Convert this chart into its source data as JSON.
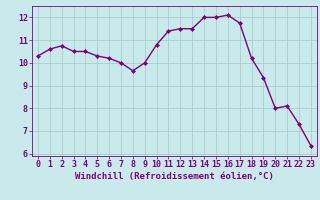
{
  "x": [
    0,
    1,
    2,
    3,
    4,
    5,
    6,
    7,
    8,
    9,
    10,
    11,
    12,
    13,
    14,
    15,
    16,
    17,
    18,
    19,
    20,
    21,
    22,
    23
  ],
  "y": [
    10.3,
    10.6,
    10.75,
    10.5,
    10.5,
    10.3,
    10.2,
    10.0,
    9.65,
    10.0,
    10.8,
    11.4,
    11.5,
    11.5,
    12.0,
    12.0,
    12.1,
    11.75,
    10.2,
    9.35,
    8.0,
    8.1,
    7.3,
    6.35
  ],
  "line_color": "#800080",
  "marker": "D",
  "marker_size": 2.0,
  "line_width": 1.0,
  "bg_color": "#c8eaea",
  "grid_color": "#a0c8c8",
  "xlabel": "Windchill (Refroidissement éolien,°C)",
  "xlabel_color": "#800080",
  "xlabel_fontsize": 6.5,
  "tick_color": "#800080",
  "tick_fontsize": 6.0,
  "ylim": [
    5.9,
    12.5
  ],
  "yticks": [
    6,
    7,
    8,
    9,
    10,
    11,
    12
  ],
  "xlim": [
    -0.5,
    23.5
  ],
  "xticks": [
    0,
    1,
    2,
    3,
    4,
    5,
    6,
    7,
    8,
    9,
    10,
    11,
    12,
    13,
    14,
    15,
    16,
    17,
    18,
    19,
    20,
    21,
    22,
    23
  ]
}
